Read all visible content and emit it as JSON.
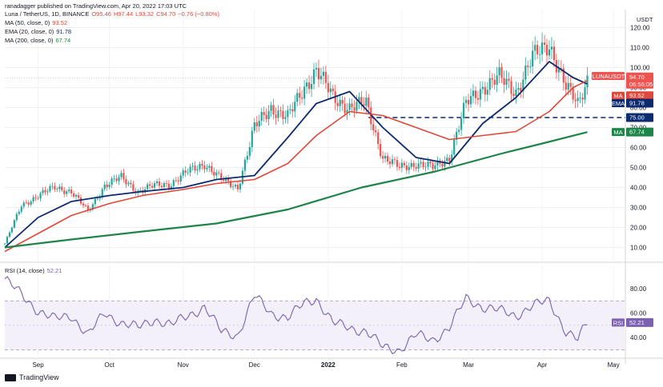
{
  "publisher": "ranadagger published on TradingView.com, Apr 20, 2022 17:03 UTC",
  "usdt_label": "USDT",
  "legend": {
    "symbol": "Luna / TetherUS, 1D, BINANCE",
    "ohlc": [
      "O95.46",
      "H97.44",
      "L93.32",
      "C94.70",
      "−0.76 (−0.80%)"
    ],
    "ma50": {
      "label": "MA (50, close, 0)",
      "value": "93.52",
      "color": "#e0483a"
    },
    "ema20": {
      "label": "EMA (20, close, 0)",
      "value": "91.78",
      "color": "#0c2a6e"
    },
    "ma200": {
      "label": "MA (200, close, 0)",
      "value": "67.74",
      "color": "#1e8449"
    }
  },
  "rsi_legend": {
    "label": "RSI (14, close)",
    "value": "52.21",
    "color": "#7b61b0"
  },
  "badges": {
    "symbol": "LUNAUSDT",
    "price": "94.70",
    "countdown": "06:56:05",
    "ma_top_tag": "MA",
    "ma_top_value": "93.52",
    "ema_tag": "EMA",
    "ema_value": "91.78",
    "support_value": "75.00",
    "ma_bot_tag": "MA",
    "ma_bot_value": "67.74",
    "rsi_tag": "RSI",
    "rsi_value": "52.21"
  },
  "footer_logo": "TradingView",
  "colors": {
    "up": "#26a69a",
    "down": "#ef5350",
    "ma50": "#e0483a",
    "ema20": "#0c2a6e",
    "ma200": "#1e8449",
    "rsi": "#7b61b0",
    "support": "#0c2a6e",
    "price_badge": "#ef5350"
  },
  "chart_data": [
    {
      "type": "line",
      "title": "Luna / TetherUS, 1D, BINANCE",
      "ylim": [
        5,
        125
      ],
      "y_ticks": [
        "10.00",
        "20.00",
        "30.00",
        "40.00",
        "50.00",
        "60.00",
        "70.00",
        "80.00",
        "90.00",
        "100.00",
        "110.00",
        "120.00"
      ],
      "x_tick_labels": [
        "Sep",
        "Oct",
        "Nov",
        "Dec",
        "2022",
        "Feb",
        "Mar",
        "Apr",
        "May"
      ],
      "x_ticks": [
        "2021-09-01",
        "2021-10-01",
        "2021-11-01",
        "2021-12-01",
        "2022-01-01",
        "2022-02-01",
        "2022-03-01",
        "2022-04-01",
        "2022-05-01"
      ],
      "xlim": [
        "2021-08-18",
        "2022-05-06"
      ],
      "support_level": 75,
      "series": [
        {
          "name": "Luna / TetherUS",
          "kind": "close",
          "x": [
            "2021-08-18",
            "2021-08-25",
            "2021-09-01",
            "2021-09-08",
            "2021-09-15",
            "2021-09-22",
            "2021-09-29",
            "2021-10-06",
            "2021-10-13",
            "2021-10-20",
            "2021-10-27",
            "2021-11-03",
            "2021-11-10",
            "2021-11-17",
            "2021-11-24",
            "2021-12-01",
            "2021-12-08",
            "2021-12-15",
            "2021-12-22",
            "2021-12-27",
            "2022-01-03",
            "2022-01-10",
            "2022-01-17",
            "2022-01-24",
            "2022-01-31",
            "2022-02-07",
            "2022-02-14",
            "2022-02-21",
            "2022-02-28",
            "2022-03-07",
            "2022-03-14",
            "2022-03-21",
            "2022-03-28",
            "2022-04-04",
            "2022-04-11",
            "2022-04-16",
            "2022-04-20"
          ],
          "y": [
            12,
            31,
            36,
            40,
            38,
            28,
            41,
            45,
            38,
            41,
            42,
            48,
            52,
            44,
            40,
            70,
            80,
            75,
            90,
            99,
            85,
            80,
            82,
            55,
            50,
            52,
            50,
            55,
            82,
            90,
            95,
            88,
            105,
            112,
            90,
            82,
            94.7
          ]
        },
        {
          "name": "EMA (20, close, 0)",
          "kind": "ema",
          "x": [
            "2021-08-18",
            "2021-09-01",
            "2021-09-15",
            "2021-10-01",
            "2021-10-15",
            "2021-11-01",
            "2021-11-15",
            "2021-12-01",
            "2021-12-15",
            "2021-12-27",
            "2022-01-10",
            "2022-01-24",
            "2022-02-07",
            "2022-02-21",
            "2022-03-07",
            "2022-03-21",
            "2022-04-04",
            "2022-04-14",
            "2022-04-20"
          ],
          "y": [
            10,
            25,
            33,
            36,
            38,
            40,
            44,
            46,
            65,
            82,
            88,
            70,
            55,
            52,
            72,
            85,
            103,
            95,
            91.78
          ]
        },
        {
          "name": "MA (50, close, 0)",
          "kind": "ma50",
          "x": [
            "2021-08-18",
            "2021-09-01",
            "2021-09-15",
            "2021-10-01",
            "2021-10-15",
            "2021-11-01",
            "2021-11-15",
            "2021-12-01",
            "2021-12-15",
            "2021-12-27",
            "2022-01-10",
            "2022-01-24",
            "2022-02-07",
            "2022-02-21",
            "2022-03-07",
            "2022-03-21",
            "2022-04-04",
            "2022-04-14",
            "2022-04-20"
          ],
          "y": [
            8,
            17,
            26,
            32,
            36,
            39,
            42,
            44,
            52,
            66,
            78,
            76,
            70,
            64,
            66,
            68,
            78,
            90,
            93.52
          ]
        },
        {
          "name": "MA (200, close, 0)",
          "kind": "ma200",
          "x": [
            "2021-08-18",
            "2021-09-15",
            "2021-10-15",
            "2021-11-15",
            "2021-12-15",
            "2022-01-15",
            "2022-02-15",
            "2022-03-15",
            "2022-04-01",
            "2022-04-20"
          ],
          "y": [
            10,
            14,
            18,
            22,
            29,
            40,
            48,
            57,
            62,
            67.74
          ]
        }
      ]
    },
    {
      "type": "line",
      "title": "RSI (14, close)",
      "ylim": [
        25,
        95
      ],
      "y_ticks": [
        "40.00",
        "60.00",
        "80.00"
      ],
      "bands": [
        30,
        70
      ],
      "mid": 50,
      "series": [
        {
          "name": "RSI (14, close)",
          "x": [
            "2021-08-18",
            "2021-08-25",
            "2021-09-01",
            "2021-09-08",
            "2021-09-15",
            "2021-09-22",
            "2021-09-29",
            "2021-10-06",
            "2021-10-13",
            "2021-10-20",
            "2021-10-27",
            "2021-11-03",
            "2021-11-10",
            "2021-11-17",
            "2021-11-24",
            "2021-12-01",
            "2021-12-08",
            "2021-12-15",
            "2021-12-22",
            "2021-12-27",
            "2022-01-03",
            "2022-01-10",
            "2022-01-17",
            "2022-01-24",
            "2022-01-31",
            "2022-02-07",
            "2022-02-14",
            "2022-02-21",
            "2022-02-28",
            "2022-03-07",
            "2022-03-14",
            "2022-03-21",
            "2022-03-28",
            "2022-04-04",
            "2022-04-11",
            "2022-04-16",
            "2022-04-20"
          ],
          "y": [
            88,
            75,
            62,
            55,
            58,
            42,
            60,
            52,
            48,
            55,
            50,
            58,
            65,
            45,
            42,
            74,
            60,
            56,
            68,
            72,
            52,
            48,
            45,
            32,
            30,
            42,
            38,
            48,
            72,
            65,
            62,
            58,
            66,
            70,
            45,
            38,
            52.21
          ]
        }
      ]
    }
  ]
}
